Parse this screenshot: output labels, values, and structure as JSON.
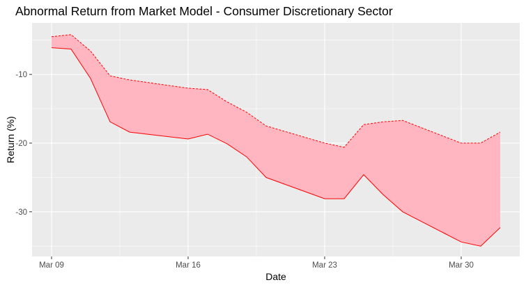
{
  "chart_data": {
    "type": "area",
    "title": "Abnormal Return from Market Model - Consumer Discretionary Sector",
    "xlabel": "Date",
    "ylabel": "Return (%)",
    "x_ticks": [
      "Mar 09",
      "Mar 16",
      "Mar 23",
      "Mar 30"
    ],
    "y_ticks": [
      -10,
      -20,
      -30
    ],
    "xlim": [
      "2020-03-08",
      "2020-04-02"
    ],
    "ylim": [
      -36.5,
      -2.5
    ],
    "grid": true,
    "colors": {
      "fill": "#ffb6c1",
      "line": "#ff0000",
      "panel": "#ebebeb",
      "grid": "#ffffff"
    },
    "x": [
      "2020-03-09",
      "2020-03-10",
      "2020-03-11",
      "2020-03-12",
      "2020-03-13",
      "2020-03-16",
      "2020-03-17",
      "2020-03-18",
      "2020-03-19",
      "2020-03-20",
      "2020-03-23",
      "2020-03-24",
      "2020-03-25",
      "2020-03-26",
      "2020-03-27",
      "2020-03-30",
      "2020-03-31",
      "2020-04-01"
    ],
    "series": [
      {
        "values": [
          -4.5,
          -4.2,
          -6.6,
          -10.2,
          -10.8,
          -12.0,
          -12.2,
          -14.0,
          -15.5,
          -17.5,
          -20.0,
          -20.6,
          -17.3,
          -16.9,
          -16.7,
          -20.0,
          -20.0,
          -18.4
        ]
      },
      {
        "values": [
          -6.1,
          -6.3,
          -10.6,
          -16.9,
          -18.4,
          -19.4,
          -18.7,
          -20.1,
          -22.0,
          -25.0,
          -28.1,
          -28.1,
          -24.6,
          -27.5,
          -30.0,
          -34.4,
          -35.0,
          -32.3
        ]
      }
    ]
  }
}
